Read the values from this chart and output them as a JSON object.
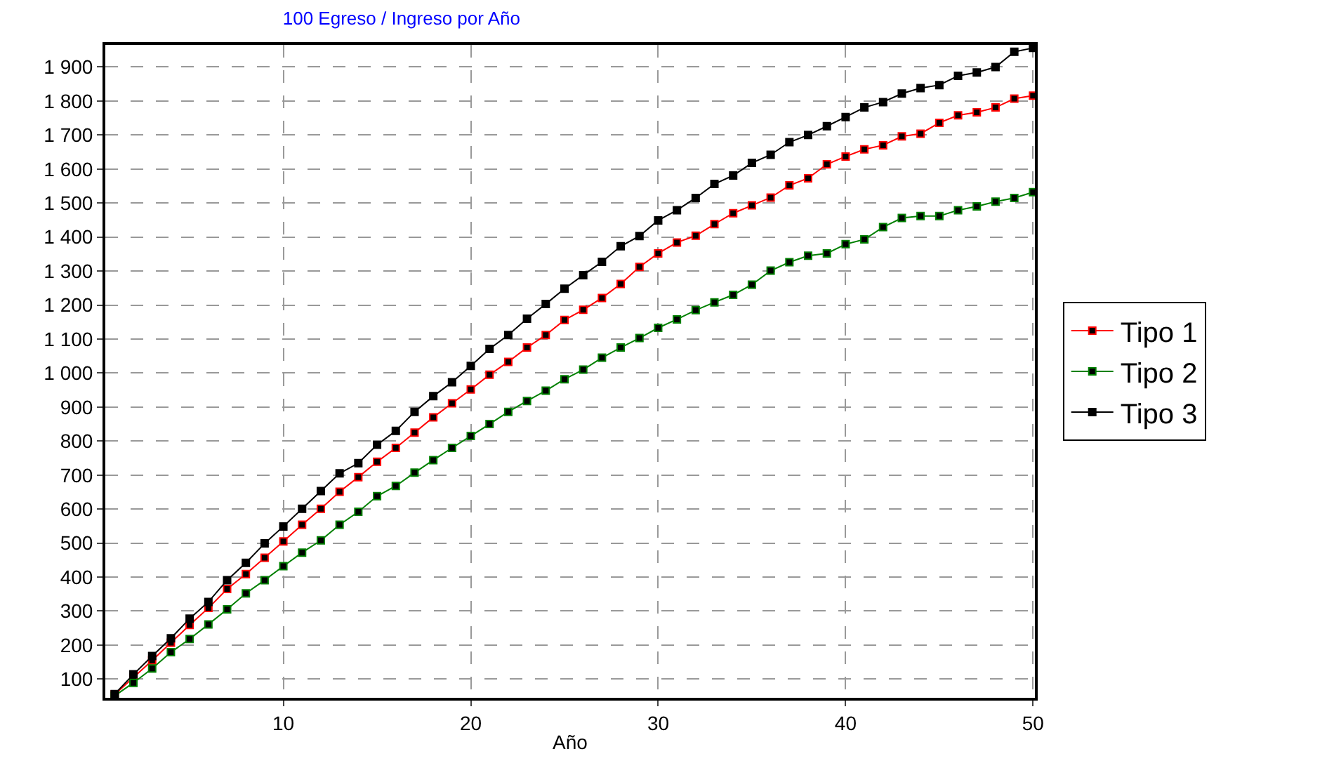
{
  "chart_data": {
    "type": "line",
    "title": "100 Egreso / Ingreso por Año",
    "xlabel": "Año",
    "x": [
      1,
      2,
      3,
      4,
      5,
      6,
      7,
      8,
      9,
      10,
      11,
      12,
      13,
      14,
      15,
      16,
      17,
      18,
      19,
      20,
      21,
      22,
      23,
      24,
      25,
      26,
      27,
      28,
      29,
      30,
      31,
      32,
      33,
      34,
      35,
      36,
      37,
      38,
      39,
      40,
      41,
      42,
      43,
      44,
      45,
      46,
      47,
      48,
      49,
      50
    ],
    "series": [
      {
        "name": "Tipo 1",
        "color": "#ff0000",
        "values": [
          55,
          105,
          155,
          207,
          259,
          309,
          365,
          409,
          457,
          505,
          554,
          601,
          651,
          694,
          739,
          780,
          825,
          870,
          911,
          952,
          995,
          1033,
          1075,
          1112,
          1156,
          1186,
          1221,
          1262,
          1312,
          1352,
          1384,
          1404,
          1438,
          1470,
          1493,
          1516,
          1552,
          1573,
          1614,
          1637,
          1658,
          1670,
          1696,
          1704,
          1736,
          1758,
          1767,
          1781,
          1807,
          1816
        ]
      },
      {
        "name": "Tipo 2",
        "color": "#008000",
        "values": [
          51,
          89,
          131,
          179,
          218,
          261,
          305,
          352,
          391,
          432,
          472,
          508,
          554,
          592,
          638,
          668,
          707,
          744,
          780,
          815,
          850,
          886,
          918,
          948,
          982,
          1010,
          1045,
          1075,
          1103,
          1133,
          1158,
          1185,
          1208,
          1230,
          1260,
          1301,
          1326,
          1345,
          1352,
          1379,
          1393,
          1429,
          1456,
          1462,
          1462,
          1479,
          1490,
          1504,
          1515,
          1532
        ]
      },
      {
        "name": "Tipo 3",
        "color": "#000000",
        "values": [
          56,
          114,
          168,
          220,
          278,
          327,
          391,
          442,
          499,
          549,
          601,
          653,
          705,
          735,
          789,
          830,
          886,
          932,
          973,
          1021,
          1071,
          1112,
          1160,
          1203,
          1248,
          1288,
          1327,
          1373,
          1403,
          1449,
          1479,
          1515,
          1556,
          1581,
          1618,
          1642,
          1679,
          1700,
          1726,
          1753,
          1781,
          1797,
          1822,
          1838,
          1847,
          1874,
          1884,
          1900,
          1945,
          1956
        ]
      }
    ],
    "xlim": [
      0.5,
      50.1
    ],
    "xticks": [
      10,
      20,
      30,
      40,
      50
    ],
    "ylim": [
      45,
      1965
    ],
    "yticks": [
      {
        "value": 100,
        "label": "100"
      },
      {
        "value": 200,
        "label": "200"
      },
      {
        "value": 300,
        "label": "300"
      },
      {
        "value": 400,
        "label": "400"
      },
      {
        "value": 500,
        "label": "500"
      },
      {
        "value": 600,
        "label": "600"
      },
      {
        "value": 700,
        "label": "700"
      },
      {
        "value": 800,
        "label": "800"
      },
      {
        "value": 900,
        "label": "900"
      },
      {
        "value": 1000,
        "label": "1 000"
      },
      {
        "value": 1100,
        "label": "1 100"
      },
      {
        "value": 1200,
        "label": "1 200"
      },
      {
        "value": 1300,
        "label": "1 300"
      },
      {
        "value": 1400,
        "label": "1 400"
      },
      {
        "value": 1500,
        "label": "1 500"
      },
      {
        "value": 1600,
        "label": "1 600"
      },
      {
        "value": 1700,
        "label": "1 700"
      },
      {
        "value": 1800,
        "label": "1 800"
      },
      {
        "value": 1900,
        "label": "1 900"
      }
    ],
    "grid": true,
    "legend": "right",
    "marker": "square",
    "line_style": "solid"
  }
}
